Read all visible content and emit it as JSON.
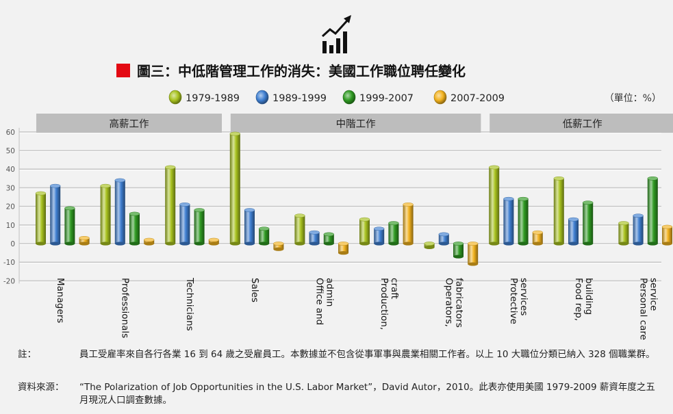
{
  "chart_data": {
    "type": "bar",
    "title": "圖三：中低階管理工作的消失：美國工作職位聘任變化",
    "unit_label": "（單位：%）",
    "ylim": [
      -20,
      60
    ],
    "yticks": [
      "60",
      "50",
      "40",
      "30",
      "20",
      "10",
      "0",
      "-10",
      "-20"
    ],
    "grid": true,
    "legend_placement": "top",
    "groups": [
      {
        "label": "高薪工作",
        "categories": [
          0,
          2
        ]
      },
      {
        "label": "中階工作",
        "categories": [
          3,
          6
        ]
      },
      {
        "label": "低薪工作",
        "categories": [
          7,
          9
        ]
      }
    ],
    "categories": [
      [
        "Managers"
      ],
      [
        "Professionals"
      ],
      [
        "Technicians"
      ],
      [
        "Sales"
      ],
      [
        "Office and",
        "admin"
      ],
      [
        "Production,",
        "craft"
      ],
      [
        "Operators,",
        "fabricators"
      ],
      [
        "Protective",
        "services"
      ],
      [
        "Food rep,",
        "building"
      ],
      [
        "Personal care",
        "service"
      ]
    ],
    "series": [
      {
        "name": "1979-1989",
        "color": "#a8c21f",
        "values": [
          27,
          31,
          41,
          59,
          15,
          13,
          -2,
          41,
          35,
          11
        ]
      },
      {
        "name": "1989-1999",
        "color": "#3f7fd1",
        "values": [
          31,
          34,
          21,
          18,
          6,
          8,
          5,
          24,
          13,
          15
        ]
      },
      {
        "name": "1999-2007",
        "color": "#2f9a22",
        "values": [
          19,
          16,
          18,
          8,
          5,
          11,
          -7,
          24,
          22,
          35
        ]
      },
      {
        "name": "2007-2009",
        "color": "#f2b21e",
        "values": [
          3,
          2,
          2,
          -3,
          -5,
          21,
          -11,
          6,
          0,
          9
        ]
      }
    ]
  },
  "notes": [
    {
      "label": "註：",
      "text": "員工受雇率來自各行各業 16 到 64 歲之受雇員工。本數據並不包含從事軍事與農業相關工作者。以上 10 大職位分類已納入 328 個職業群。"
    },
    {
      "label": "資料來源：",
      "text": "“The Polarization of Job Opportunities in the U.S. Labor Market”，David Autor，2010。此表亦使用美國 1979-2009 薪資年度之五月現況人口調查數據。"
    }
  ],
  "icon": "growth-chart-icon"
}
